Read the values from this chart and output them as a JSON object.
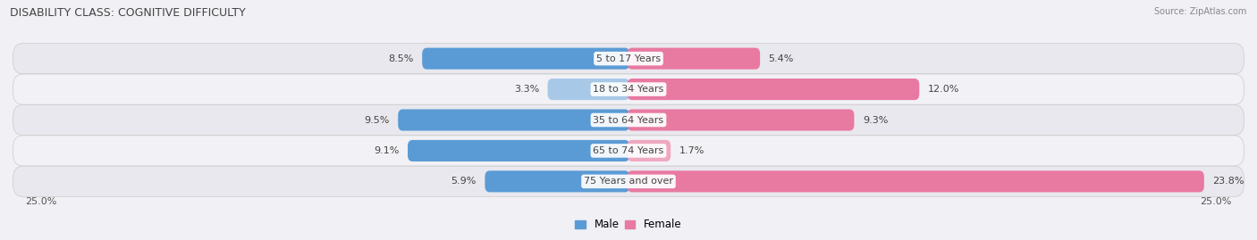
{
  "title": "DISABILITY CLASS: COGNITIVE DIFFICULTY",
  "source": "Source: ZipAtlas.com",
  "categories": [
    "5 to 17 Years",
    "18 to 34 Years",
    "35 to 64 Years",
    "65 to 74 Years",
    "75 Years and over"
  ],
  "male_values": [
    8.5,
    3.3,
    9.5,
    9.1,
    5.9
  ],
  "female_values": [
    5.4,
    12.0,
    9.3,
    1.7,
    23.8
  ],
  "male_color_dark": "#5b9bd5",
  "male_color_light": "#a8c8e8",
  "female_color_dark": "#e879a0",
  "female_color_light": "#f0a8c0",
  "axis_max": 25.0,
  "bg_color": "#f0f0f5",
  "row_colors": [
    "#e8e8ee",
    "#f2f2f6"
  ],
  "title_fontsize": 9,
  "value_fontsize": 8,
  "cat_fontsize": 8,
  "legend_fontsize": 8.5,
  "axis_label_fontsize": 8
}
